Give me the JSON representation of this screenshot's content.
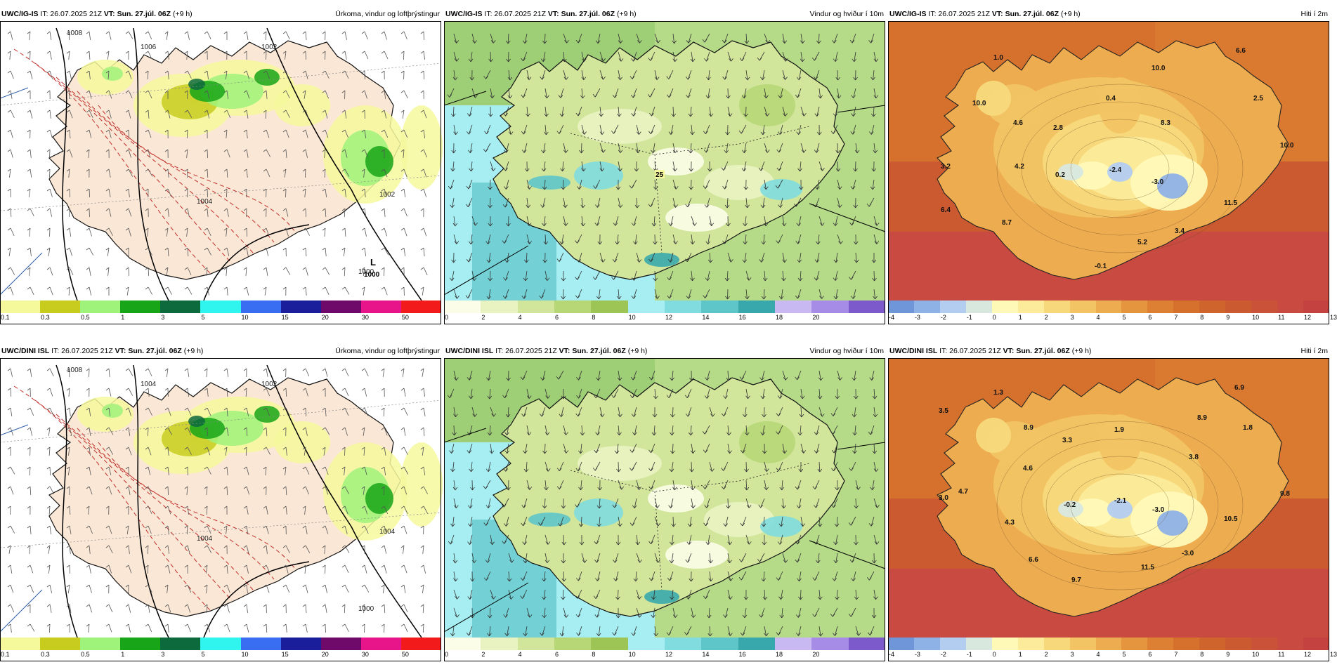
{
  "panels": [
    {
      "model": "UWC/IG-IS",
      "it": "IT: 26.07.2025 21Z",
      "vt": "VT: Sun. 27.júl. 06Z",
      "offset": "(+9 h)",
      "title": "Úrkoma, vindur og loftþrýstingur",
      "type": "precip",
      "low_label": "L",
      "low_value": "1000",
      "isobar_labels": [
        "1008",
        "1006",
        "1002",
        "1004",
        "1002",
        "1000"
      ],
      "legend": {
        "colors": [
          "#f6f89c",
          "#c8cc1e",
          "#9ff27a",
          "#18a518",
          "#0d6a3d",
          "#2ff5ee",
          "#3a6ef2",
          "#1b1e9a",
          "#6f0a6a",
          "#e8148a",
          "#f21a1a"
        ],
        "ticks": [
          "0.1",
          "0.3",
          "0.5",
          "1",
          "3",
          "5",
          "10",
          "15",
          "20",
          "30",
          "50"
        ]
      }
    },
    {
      "model": "UWC/IG-IS",
      "it": "IT: 26.07.2025 21Z",
      "vt": "VT: Sun. 27.júl. 06Z",
      "offset": "(+9 h)",
      "title": "Vindur og hviður í 10m",
      "type": "wind",
      "highlight": "25",
      "legend": {
        "colors": [
          "#fbfde8",
          "#e9f3c2",
          "#d1e59b",
          "#b7d777",
          "#9cc556",
          "#a6eef2",
          "#80dcdf",
          "#5ec5c9",
          "#38a8ac",
          "#c9b9f2",
          "#a68ce6",
          "#7d5acc"
        ],
        "ticks": [
          "0",
          "2",
          "4",
          "6",
          "8",
          "10",
          "12",
          "14",
          "16",
          "18",
          "20"
        ]
      }
    },
    {
      "model": "UWC/IG-IS",
      "it": "IT: 26.07.2025 21Z",
      "vt": "VT: Sun. 27.júl. 06Z",
      "offset": "(+9 h)",
      "title": "Hiti í 2m",
      "type": "temp",
      "values": [
        "1.0",
        "6.6",
        "10.0",
        "10.0",
        "4.6",
        "2.8",
        "0.4",
        "8.3",
        "2.5",
        "10.0",
        "3.2",
        "4.2",
        "0.2",
        "-2.4",
        "-3.0",
        "11.5",
        "6.4",
        "8.7",
        "5.2",
        "3.4",
        "-0.1"
      ],
      "legend": {
        "colors": [
          "#6e96d8",
          "#8fb2e6",
          "#b3cdf0",
          "#d8e8df",
          "#fff9b8",
          "#fbeb9a",
          "#f7d97c",
          "#f2c463",
          "#edac4f",
          "#e6953f",
          "#de8034",
          "#d5702d",
          "#cf642c",
          "#cc5a31",
          "#ca5238",
          "#c84a40",
          "#c4423f"
        ],
        "ticks": [
          "-4",
          "-3",
          "-2",
          "-1",
          "0",
          "1",
          "2",
          "3",
          "4",
          "5",
          "6",
          "7",
          "8",
          "9",
          "10",
          "11",
          "12",
          "13"
        ]
      }
    },
    {
      "model": "UWC/DINI ISL",
      "it": "IT: 26.07.2025 21Z",
      "vt": "VT: Sun. 27.júl. 06Z",
      "offset": "(+9 h)",
      "title": "Úrkoma, vindur og loftþrýstingur",
      "type": "precip",
      "isobar_labels": [
        "1008",
        "1004",
        "1002",
        "1004",
        "1004",
        "1000"
      ],
      "legend": {
        "colors": [
          "#f6f89c",
          "#c8cc1e",
          "#9ff27a",
          "#18a518",
          "#0d6a3d",
          "#2ff5ee",
          "#3a6ef2",
          "#1b1e9a",
          "#6f0a6a",
          "#e8148a",
          "#f21a1a"
        ],
        "ticks": [
          "0.1",
          "0.3",
          "0.5",
          "1",
          "3",
          "5",
          "10",
          "15",
          "20",
          "30",
          "50"
        ]
      }
    },
    {
      "model": "UWC/DINI ISL",
      "it": "IT: 26.07.2025 21Z",
      "vt": "VT: Sun. 27.júl. 06Z",
      "offset": "(+9 h)",
      "title": "Vindur og hviður í 10m",
      "type": "wind",
      "legend": {
        "colors": [
          "#fbfde8",
          "#e9f3c2",
          "#d1e59b",
          "#b7d777",
          "#9cc556",
          "#a6eef2",
          "#80dcdf",
          "#5ec5c9",
          "#38a8ac",
          "#c9b9f2",
          "#a68ce6",
          "#7d5acc"
        ],
        "ticks": [
          "0",
          "2",
          "4",
          "6",
          "8",
          "10",
          "12",
          "14",
          "16",
          "18",
          "20"
        ]
      }
    },
    {
      "model": "UWC/DINI ISL",
      "it": "IT: 26.07.2025 21Z",
      "vt": "VT: Sun. 27.júl. 06Z",
      "offset": "(+9 h)",
      "title": "Hiti í 2m",
      "type": "temp",
      "values": [
        "1.3",
        "6.9",
        "3.5",
        "8.9",
        "8.9",
        "1.9",
        "1.8",
        "3.3",
        "4.6",
        "3.8",
        "4.7",
        "3.0",
        "-0.2",
        "-2.1",
        "-3.0",
        "9.8",
        "4.3",
        "10.5",
        "6.6",
        "-3.0",
        "11.5",
        "9.7"
      ],
      "legend": {
        "colors": [
          "#6e96d8",
          "#8fb2e6",
          "#b3cdf0",
          "#d8e8df",
          "#fff9b8",
          "#fbeb9a",
          "#f7d97c",
          "#f2c463",
          "#edac4f",
          "#e6953f",
          "#de8034",
          "#d5702d",
          "#cf642c",
          "#cc5a31",
          "#ca5238",
          "#c84a40",
          "#c4423f"
        ],
        "ticks": [
          "-4",
          "-3",
          "-2",
          "-1",
          "0",
          "1",
          "2",
          "3",
          "4",
          "5",
          "6",
          "7",
          "8",
          "9",
          "10",
          "11",
          "12",
          "13"
        ]
      }
    }
  ]
}
